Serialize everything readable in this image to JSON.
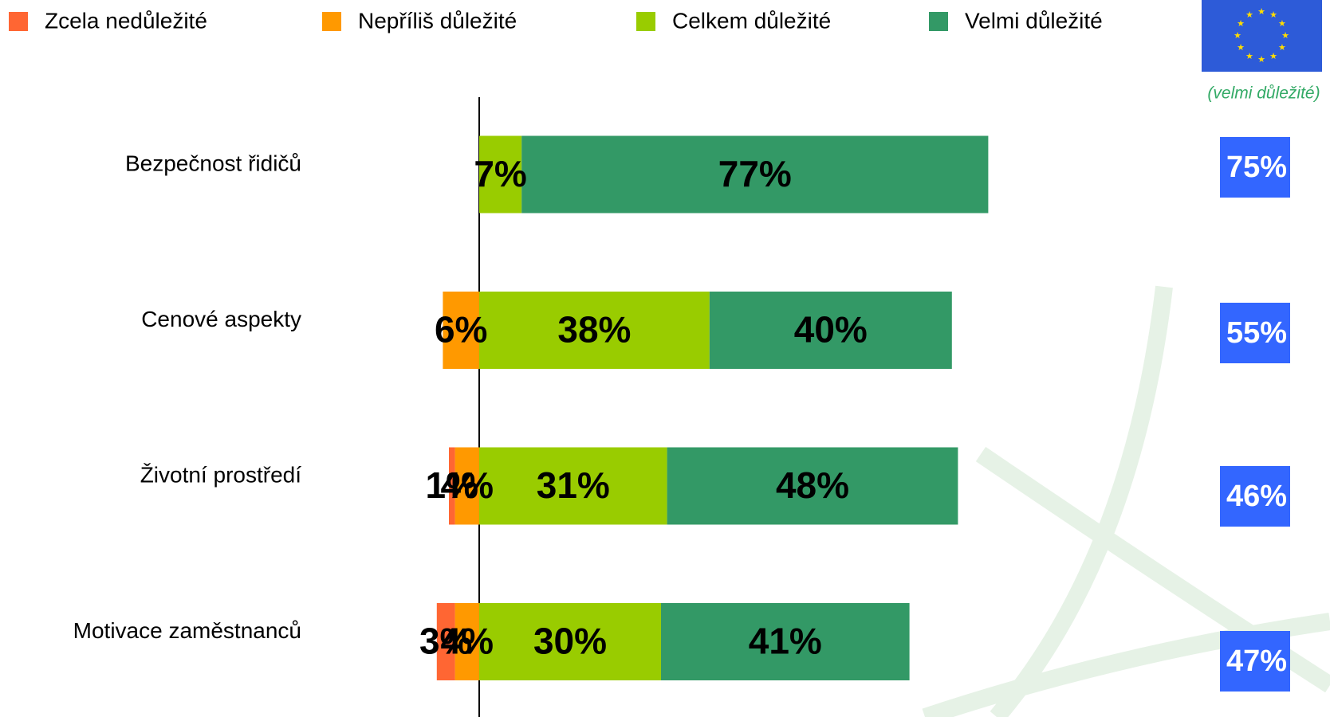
{
  "chart_data": {
    "type": "diverging-bar",
    "categories": [
      "Bezpečnost řidičů",
      "Cenové aspekty",
      "Životní prostředí",
      "Motivace zaměstnanců"
    ],
    "series": [
      {
        "name": "Zcela nedůležité",
        "color": "#ff6633",
        "values": [
          null,
          null,
          1,
          3
        ],
        "value_labels": [
          null,
          null,
          "1%",
          "3%"
        ]
      },
      {
        "name": "Nepříliš důležité",
        "color": "#ff9900",
        "values": [
          null,
          6,
          4,
          4
        ],
        "value_labels": [
          null,
          "6%",
          "4%",
          "4%"
        ]
      },
      {
        "name": "Celkem důležité",
        "color": "#99cc00",
        "values": [
          7,
          38,
          31,
          30
        ],
        "value_labels": [
          "7%",
          "38%",
          "31%",
          "30%"
        ]
      },
      {
        "name": "Velmi důležité",
        "color": "#339966",
        "values": [
          77,
          40,
          48,
          41
        ],
        "value_labels": [
          "77%",
          "40%",
          "48%",
          "41%"
        ]
      }
    ],
    "eu": {
      "title": "(velmi důležité)",
      "color": "#3366ff",
      "values": [
        75,
        55,
        46,
        47
      ],
      "value_labels": [
        "75%",
        "55%",
        "46%",
        "47%"
      ]
    }
  }
}
